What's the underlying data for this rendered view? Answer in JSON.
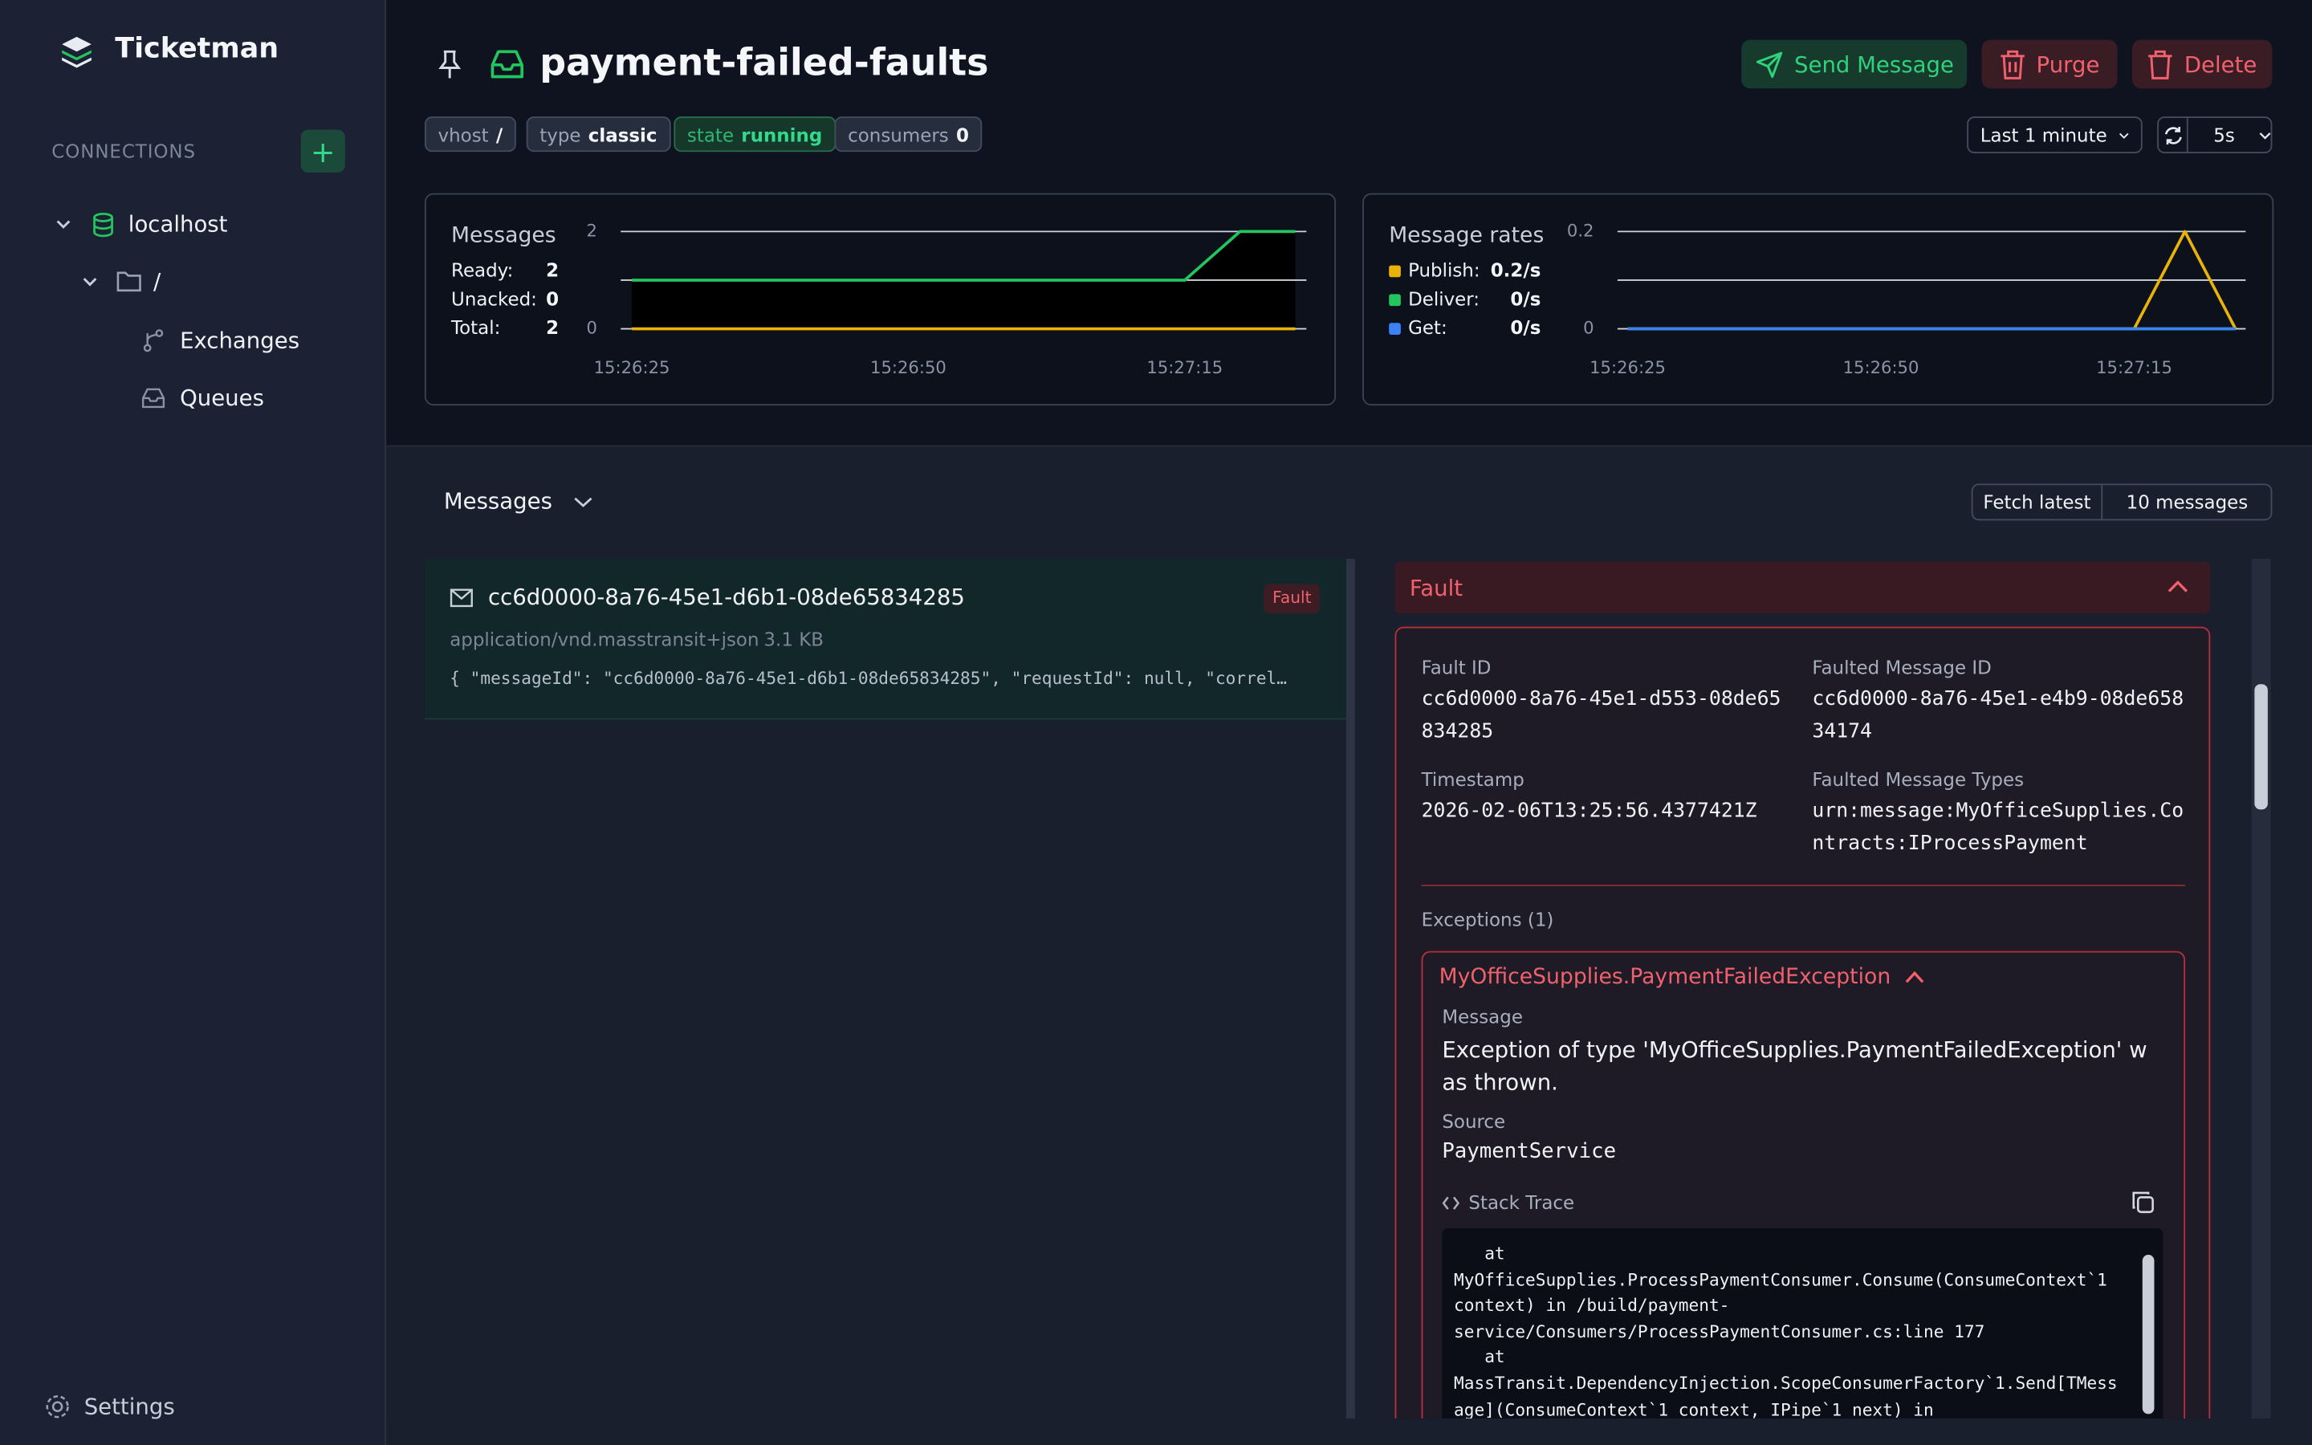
{
  "sidebar": {
    "app_name": "Ticketman",
    "connections_label": "CONNECTIONS",
    "tree": [
      {
        "label": "localhost"
      },
      {
        "label": "/"
      },
      {
        "label": "Exchanges"
      },
      {
        "label": "Queues"
      }
    ],
    "settings": "Settings"
  },
  "header": {
    "title": "payment-failed-faults",
    "buttons": [
      "Send Message",
      "Purge",
      "Delete"
    ],
    "badges": [
      {
        "key": "vhost",
        "value": "/"
      },
      {
        "key": "type",
        "value": "classic"
      },
      {
        "key": "state",
        "value": "running"
      },
      {
        "key": "consumers",
        "value": "0"
      }
    ],
    "time_range": "Last 1 minute",
    "refresh_interval": "5s"
  },
  "chart_data": [
    {
      "type": "line",
      "title": "Messages",
      "x": [
        "15:26:25",
        "15:26:30",
        "15:26:35",
        "15:26:40",
        "15:26:45",
        "15:26:50",
        "15:26:55",
        "15:27:00",
        "15:27:05",
        "15:27:10",
        "15:27:15",
        "15:27:20",
        "15:27:25"
      ],
      "xlim": [
        "15:26:24",
        "15:27:26"
      ],
      "xticks": [
        "15:26:25",
        "15:26:50",
        "15:27:15"
      ],
      "ylim": [
        0,
        2
      ],
      "yticks": [
        0,
        2
      ],
      "grid": true,
      "series": [
        {
          "name": "Total:",
          "color": "#000000",
          "style": "area",
          "current": 2,
          "values": [
            1,
            1,
            1,
            1,
            1,
            1,
            1,
            1,
            1,
            1,
            1,
            2,
            2
          ]
        },
        {
          "name": "Ready:",
          "color": "#22c55e",
          "style": "line",
          "current": 2,
          "values": [
            1,
            1,
            1,
            1,
            1,
            1,
            1,
            1,
            1,
            1,
            1,
            2,
            2
          ]
        },
        {
          "name": "Unacked:",
          "color": "#eab308",
          "style": "line",
          "current": 0,
          "values": [
            0,
            0,
            0,
            0,
            0,
            0,
            0,
            0,
            0,
            0,
            0,
            0,
            0
          ]
        }
      ],
      "legend_order": [
        1,
        2,
        0
      ]
    },
    {
      "type": "line",
      "title": "Message rates",
      "x": [
        "15:26:25",
        "15:26:30",
        "15:26:35",
        "15:26:40",
        "15:26:45",
        "15:26:50",
        "15:26:55",
        "15:27:00",
        "15:27:05",
        "15:27:10",
        "15:27:15",
        "15:27:20",
        "15:27:25"
      ],
      "xlim": [
        "15:26:24",
        "15:27:26"
      ],
      "xticks": [
        "15:26:25",
        "15:26:50",
        "15:27:15"
      ],
      "ylim": [
        0,
        0.2
      ],
      "yticks": [
        0,
        0.2
      ],
      "grid": true,
      "series": [
        {
          "name": "Publish:",
          "color": "#eab308",
          "style": "line",
          "current": "0.2/s",
          "values": [
            0,
            0,
            0,
            0,
            0,
            0,
            0,
            0,
            0,
            0,
            0,
            0.2,
            0
          ]
        },
        {
          "name": "Deliver:",
          "color": "#22c55e",
          "style": "line",
          "current": "0/s",
          "values": [
            0,
            0,
            0,
            0,
            0,
            0,
            0,
            0,
            0,
            0,
            0,
            0,
            0
          ]
        },
        {
          "name": "Get:",
          "color": "#3b82f6",
          "style": "line",
          "current": "0/s",
          "values": [
            0,
            0,
            0,
            0,
            0,
            0,
            0,
            0,
            0,
            0,
            0,
            0,
            0
          ]
        }
      ],
      "legend_order": [
        0,
        1,
        2
      ]
    }
  ],
  "messages": {
    "title": "Messages",
    "fetch_label": "Fetch latest",
    "fetch_count": "10 messages",
    "items": [
      {
        "id": "cc6d0000-8a76-45e1-d6b1-08de65834285",
        "badge": "Fault",
        "content_type": "application/vnd.masstransit+json",
        "size": "3.1 KB",
        "preview": "{ \"messageId\": \"cc6d0000-8a76-45e1-d6b1-08de65834285\", \"requestId\": null, \"correl…"
      }
    ]
  },
  "fault": {
    "title": "Fault",
    "fields": [
      {
        "label": "Fault ID",
        "value": "cc6d0000-8a76-45e1-d553-08de65834285"
      },
      {
        "label": "Faulted Message ID",
        "value": "cc6d0000-8a76-45e1-e4b9-08de65834174"
      },
      {
        "label": "Timestamp",
        "value": "2026-02-06T13:25:56.4377421Z"
      },
      {
        "label": "Faulted Message Types",
        "value": "urn:message:MyOfficeSupplies.Contracts:IProcessPayment"
      }
    ],
    "exceptions_label": "Exceptions (1)",
    "exception": {
      "type": "MyOfficeSupplies.PaymentFailedException",
      "message_label": "Message",
      "message": "Exception of type 'MyOfficeSupplies.PaymentFailedException' was thrown.",
      "source_label": "Source",
      "source": "PaymentService",
      "stack_trace_label": "Stack Trace",
      "stack_trace": "   at MyOfficeSupplies.ProcessPaymentConsumer.Consume(ConsumeContext`1 context) in /build/payment-service/Consumers/ProcessPaymentConsumer.cs:line 177\n   at MassTransit.DependencyInjection.ScopeConsumerFactory`1.Send[TMessage](ConsumeContext`1 context, IPipe`1 next) in"
    }
  }
}
